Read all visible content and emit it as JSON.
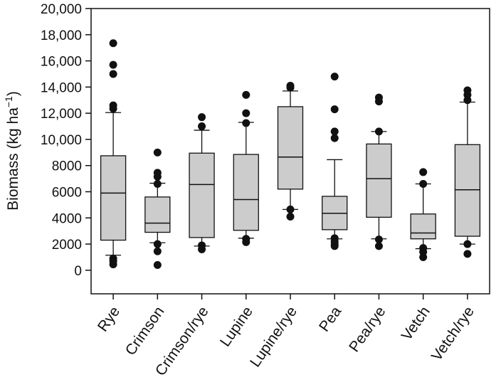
{
  "chart_data": {
    "type": "box",
    "ylabel": {
      "main": "Biomass (kg ha",
      "sup": "−1",
      "close": ")"
    },
    "yticks": [
      {
        "value": 0,
        "label": "0"
      },
      {
        "value": 2000,
        "label": "2000"
      },
      {
        "value": 4000,
        "label": "4000"
      },
      {
        "value": 6000,
        "label": "6000"
      },
      {
        "value": 8000,
        "label": "8000"
      },
      {
        "value": 10000,
        "label": "10,000"
      },
      {
        "value": 12000,
        "label": "12,000"
      },
      {
        "value": 14000,
        "label": "14,000"
      },
      {
        "value": 16000,
        "label": "16,000"
      },
      {
        "value": 18000,
        "label": "18,000"
      },
      {
        "value": 20000,
        "label": "20,000"
      }
    ],
    "ylim": [
      -1800,
      20000
    ],
    "grid": false,
    "box_color": "#cccccc",
    "categories": [
      "Rye",
      "Crimson",
      "Crimson/rye",
      "Lupine",
      "Lupine/rye",
      "Pea",
      "Pea/rye",
      "Vetch",
      "Vetch/rye"
    ],
    "boxes": [
      {
        "category": "Rye",
        "whisker_low": 1150,
        "q1": 2300,
        "median": 5900,
        "q3": 8750,
        "whisker_high": 12050,
        "outliers": [
          17350,
          15700,
          15000,
          12600,
          12350,
          900,
          700,
          450
        ]
      },
      {
        "category": "Crimson",
        "whisker_low": 2100,
        "q1": 2900,
        "median": 3600,
        "q3": 5600,
        "whisker_high": 6650,
        "outliers": [
          9000,
          7450,
          7150,
          6600,
          2000,
          1450,
          400
        ]
      },
      {
        "category": "Crimson/rye",
        "whisker_low": 1850,
        "q1": 2500,
        "median": 6550,
        "q3": 8950,
        "whisker_high": 10700,
        "outliers": [
          11700,
          11000,
          1900,
          1600
        ]
      },
      {
        "category": "Lupine",
        "whisker_low": 2450,
        "q1": 3050,
        "median": 5400,
        "q3": 8850,
        "whisker_high": 11300,
        "outliers": [
          13400,
          12000,
          11250,
          2400,
          2150
        ]
      },
      {
        "category": "Lupine/rye",
        "whisker_low": 4650,
        "q1": 6200,
        "median": 8650,
        "q3": 12500,
        "whisker_high": 13700,
        "outliers": [
          14100,
          13950,
          4650,
          4100
        ]
      },
      {
        "category": "Pea",
        "whisker_low": 2400,
        "q1": 3100,
        "median": 4350,
        "q3": 5650,
        "whisker_high": 8450,
        "outliers": [
          14800,
          12300,
          10600,
          10100,
          2450,
          2200,
          2000,
          1850
        ]
      },
      {
        "category": "Pea/rye",
        "whisker_low": 2400,
        "q1": 4050,
        "median": 7000,
        "q3": 9650,
        "whisker_high": 10600,
        "outliers": [
          13200,
          12900,
          10600,
          2350,
          1850
        ]
      },
      {
        "category": "Vetch",
        "whisker_low": 1650,
        "q1": 2400,
        "median": 2850,
        "q3": 4300,
        "whisker_high": 6600,
        "outliers": [
          7500,
          6600,
          1700,
          1400,
          1000
        ]
      },
      {
        "category": "Vetch/rye",
        "whisker_low": 2000,
        "q1": 2600,
        "median": 6150,
        "q3": 9600,
        "whisker_high": 12850,
        "outliers": [
          13750,
          13400,
          13000,
          2000,
          1250
        ]
      }
    ]
  }
}
